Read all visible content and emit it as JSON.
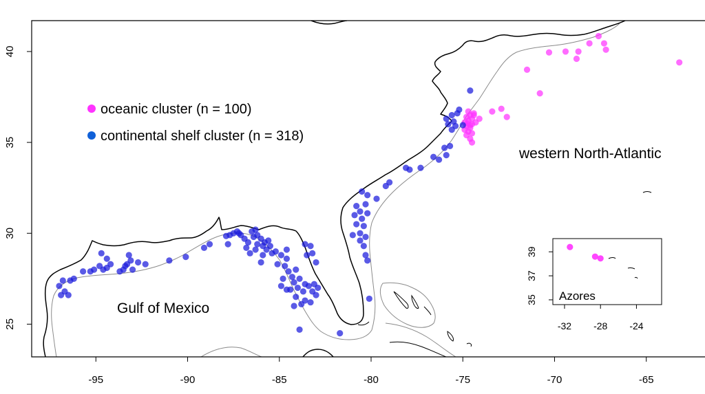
{
  "colors": {
    "oceanic": "#ff33ff",
    "shelf": "#1a1add",
    "legend_shelf": "#1060d8",
    "coast": "#000000",
    "isobath": "#8a8a8a"
  },
  "legend": {
    "items": [
      {
        "label": "oceanic cluster (n = 100)",
        "color_key": "oceanic"
      },
      {
        "label": "continental shelf cluster (n = 318)",
        "color_key": "legend_shelf"
      }
    ]
  },
  "labels": {
    "gulf": "Gulf of Mexico",
    "atlantic": "western North-Atlantic"
  },
  "inset": {
    "label": "Azores",
    "x_ticks": [
      {
        "value": -32,
        "label": "-32"
      },
      {
        "value": -28,
        "label": "-28"
      },
      {
        "value": -24,
        "label": "-24"
      }
    ],
    "y_ticks": [
      {
        "value": 39,
        "label": "39"
      },
      {
        "value": 37,
        "label": "37"
      },
      {
        "value": 35,
        "label": "35"
      }
    ],
    "points": [
      {
        "lon": -31.4,
        "lat": 39.4,
        "cluster": "oceanic"
      },
      {
        "lon": -28.6,
        "lat": 38.6,
        "cluster": "oceanic"
      },
      {
        "lon": -28.0,
        "lat": 38.45,
        "cluster": "oceanic"
      }
    ]
  },
  "chart_data": {
    "type": "scatter",
    "title": "",
    "xlabel": "",
    "ylabel": "",
    "xlim": [
      -98.5,
      -61.8
    ],
    "ylim": [
      23.2,
      41.7
    ],
    "x_ticks": [
      {
        "value": -95,
        "label": "-95"
      },
      {
        "value": -90,
        "label": "-90"
      },
      {
        "value": -85,
        "label": "-85"
      },
      {
        "value": -80,
        "label": "-80"
      },
      {
        "value": -75,
        "label": "-75"
      },
      {
        "value": -70,
        "label": "-70"
      },
      {
        "value": -65,
        "label": "-65"
      }
    ],
    "y_ticks": [
      {
        "value": 25,
        "label": "25"
      },
      {
        "value": 30,
        "label": "30"
      },
      {
        "value": 35,
        "label": "35"
      },
      {
        "value": 40,
        "label": "40"
      }
    ],
    "series": [
      {
        "name": "oceanic cluster (n = 100)",
        "color_key": "oceanic",
        "points": [
          [
            -67.6,
            40.85
          ],
          [
            -68.1,
            40.45
          ],
          [
            -67.3,
            40.45
          ],
          [
            -67.2,
            40.1
          ],
          [
            -68.7,
            40.0
          ],
          [
            -69.4,
            40.0
          ],
          [
            -70.3,
            39.95
          ],
          [
            -68.8,
            39.6
          ],
          [
            -63.2,
            39.4
          ],
          [
            -71.5,
            39.0
          ],
          [
            -70.8,
            37.7
          ],
          [
            -72.9,
            36.85
          ],
          [
            -73.4,
            36.7
          ],
          [
            -72.6,
            36.4
          ],
          [
            -74.1,
            36.3
          ],
          [
            -74.4,
            36.6
          ],
          [
            -74.6,
            36.5
          ],
          [
            -74.8,
            36.4
          ],
          [
            -74.5,
            36.3
          ],
          [
            -74.7,
            36.2
          ],
          [
            -74.9,
            36.1
          ],
          [
            -74.5,
            36.0
          ],
          [
            -74.8,
            35.9
          ],
          [
            -74.6,
            35.8
          ],
          [
            -74.9,
            35.7
          ],
          [
            -74.7,
            35.6
          ],
          [
            -74.5,
            35.5
          ],
          [
            -74.8,
            35.4
          ],
          [
            -74.6,
            35.2
          ],
          [
            -74.5,
            35.0
          ],
          [
            -74.3,
            36.1
          ],
          [
            -74.4,
            36.5
          ],
          [
            -74.7,
            36.7
          ],
          [
            -74.6,
            35.95
          ],
          [
            -74.75,
            36.05
          ]
        ]
      },
      {
        "name": "continental shelf cluster (n = 318)",
        "color_key": "shelf",
        "points": [
          [
            -74.6,
            37.85
          ],
          [
            -75.2,
            36.8
          ],
          [
            -75.6,
            36.5
          ],
          [
            -75.9,
            36.3
          ],
          [
            -75.5,
            36.15
          ],
          [
            -75.8,
            36.0
          ],
          [
            -75.4,
            35.9
          ],
          [
            -75.6,
            35.7
          ],
          [
            -75.0,
            35.95
          ],
          [
            -75.3,
            36.6
          ],
          [
            -75.7,
            34.8
          ],
          [
            -76.0,
            34.7
          ],
          [
            -75.9,
            34.3
          ],
          [
            -76.3,
            34.05
          ],
          [
            -76.6,
            34.2
          ],
          [
            -77.3,
            33.6
          ],
          [
            -78.1,
            33.6
          ],
          [
            -77.9,
            33.5
          ],
          [
            -79.0,
            32.8
          ],
          [
            -79.2,
            32.6
          ],
          [
            -80.2,
            32.1
          ],
          [
            -80.5,
            32.3
          ],
          [
            -79.7,
            31.9
          ],
          [
            -80.8,
            31.5
          ],
          [
            -80.3,
            31.6
          ],
          [
            -80.6,
            31.2
          ],
          [
            -80.9,
            31.0
          ],
          [
            -80.2,
            31.1
          ],
          [
            -80.5,
            30.8
          ],
          [
            -80.8,
            30.5
          ],
          [
            -80.4,
            30.4
          ],
          [
            -80.6,
            30.0
          ],
          [
            -80.3,
            29.8
          ],
          [
            -81.0,
            29.9
          ],
          [
            -80.6,
            29.6
          ],
          [
            -80.4,
            29.3
          ],
          [
            -80.3,
            28.8
          ],
          [
            -80.2,
            28.5
          ],
          [
            -80.1,
            26.4
          ],
          [
            -81.7,
            24.5
          ],
          [
            -83.0,
            26.6
          ],
          [
            -83.3,
            26.2
          ],
          [
            -83.6,
            26.3
          ],
          [
            -83.8,
            26.1
          ],
          [
            -84.1,
            26.5
          ],
          [
            -84.4,
            26.9
          ],
          [
            -84.2,
            27.3
          ],
          [
            -83.9,
            27.5
          ],
          [
            -83.6,
            27.2
          ],
          [
            -83.4,
            27.1
          ],
          [
            -83.1,
            27.2
          ],
          [
            -82.9,
            27.0
          ],
          [
            -83.2,
            26.8
          ],
          [
            -83.7,
            26.8
          ],
          [
            -84.0,
            27.0
          ],
          [
            -84.3,
            27.6
          ],
          [
            -84.5,
            27.9
          ],
          [
            -84.1,
            28.0
          ],
          [
            -84.7,
            28.2
          ],
          [
            -84.8,
            27.5
          ],
          [
            -84.9,
            27.1
          ],
          [
            -84.6,
            26.9
          ],
          [
            -84.2,
            26.0
          ],
          [
            -83.9,
            24.7
          ],
          [
            -83.5,
            28.8
          ],
          [
            -83.3,
            29.3
          ],
          [
            -83.6,
            29.4
          ],
          [
            -83.2,
            28.9
          ],
          [
            -83.0,
            28.4
          ],
          [
            -84.6,
            28.6
          ],
          [
            -84.9,
            28.8
          ],
          [
            -85.2,
            29.0
          ],
          [
            -84.6,
            29.1
          ],
          [
            -85.5,
            29.3
          ],
          [
            -85.6,
            29.6
          ],
          [
            -85.8,
            29.5
          ],
          [
            -86.0,
            29.7
          ],
          [
            -86.2,
            29.4
          ],
          [
            -86.4,
            29.8
          ],
          [
            -86.7,
            29.5
          ],
          [
            -86.9,
            29.7
          ],
          [
            -87.1,
            29.9
          ],
          [
            -87.3,
            30.1
          ],
          [
            -87.5,
            30.0
          ],
          [
            -87.7,
            29.9
          ],
          [
            -87.9,
            29.85
          ],
          [
            -86.5,
            30.1
          ],
          [
            -86.2,
            29.9
          ],
          [
            -85.9,
            29.3
          ],
          [
            -85.7,
            29.1
          ],
          [
            -85.4,
            28.9
          ],
          [
            -85.9,
            28.8
          ],
          [
            -86.0,
            28.4
          ],
          [
            -85.1,
            28.3
          ],
          [
            -86.3,
            29.1
          ],
          [
            -86.6,
            28.9
          ],
          [
            -86.8,
            29.2
          ],
          [
            -87.2,
            30.0
          ],
          [
            -86.3,
            30.2
          ],
          [
            -87.8,
            29.4
          ],
          [
            -88.8,
            29.4
          ],
          [
            -89.1,
            29.2
          ],
          [
            -90.1,
            28.7
          ],
          [
            -91.0,
            28.5
          ],
          [
            -92.3,
            28.3
          ],
          [
            -93.0,
            28.0
          ],
          [
            -93.1,
            28.5
          ],
          [
            -93.2,
            28.8
          ],
          [
            -93.3,
            28.3
          ],
          [
            -93.4,
            28.2
          ],
          [
            -93.5,
            28.0
          ],
          [
            -93.7,
            27.9
          ],
          [
            -94.2,
            28.3
          ],
          [
            -94.4,
            28.1
          ],
          [
            -94.6,
            28.0
          ],
          [
            -94.8,
            28.2
          ],
          [
            -95.1,
            28.0
          ],
          [
            -95.3,
            27.9
          ],
          [
            -95.7,
            27.9
          ],
          [
            -96.2,
            27.5
          ],
          [
            -96.4,
            27.4
          ],
          [
            -96.5,
            26.6
          ],
          [
            -96.7,
            26.8
          ],
          [
            -96.9,
            26.6
          ],
          [
            -97.0,
            27.1
          ],
          [
            -96.8,
            27.4
          ],
          [
            -94.7,
            28.9
          ],
          [
            -94.4,
            28.6
          ],
          [
            -92.7,
            28.4
          ]
        ]
      }
    ]
  }
}
